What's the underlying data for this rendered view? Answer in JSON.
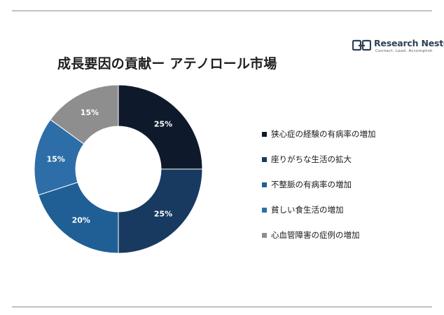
{
  "title": "成長要因の貢献ー アテノロール市場",
  "brand": {
    "name": "Research Nester",
    "tagline": "Connect. Lead. Accomplish"
  },
  "colors": {
    "series": [
      "#0e1a2b",
      "#183a61",
      "#1f5f95",
      "#2e6ea8",
      "#8e8e8e"
    ],
    "label_text": "#ffffff",
    "rule": "#8c8c8c"
  },
  "chart_data": {
    "type": "pie",
    "categories": [
      "狭心症の経験の有病率の増加",
      "座りがちな生活の拡大",
      "不整脈の有病率の増加",
      "貧しい食生活の増加",
      "心血管障害の症例の増加"
    ],
    "values": [
      25,
      25,
      20,
      15,
      15
    ],
    "data_labels": [
      "25%",
      "25%",
      "20%",
      "15%",
      "15%"
    ],
    "title": "成長要因の貢献ー アテノロール市場",
    "donut": true,
    "start_angle": "12 o'clock",
    "direction": "clockwise",
    "legend_position": "right"
  }
}
